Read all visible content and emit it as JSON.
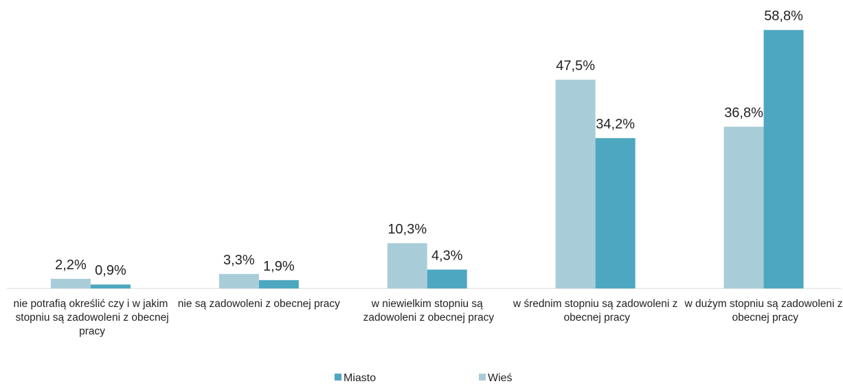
{
  "chart_data": {
    "type": "bar",
    "categories": [
      "nie potrafią określić czy i w jakim stopniu są zadowoleni z obecnej pracy",
      "nie są zadowoleni z obecnej pracy",
      "w niewielkim stopniu są zadowoleni z obecnej pracy",
      "w średnim stopniu są zadowoleni z obecnej pracy",
      "w dużym stopniu są zadowoleni z obecnej pracy"
    ],
    "series": [
      {
        "name": "Wieś",
        "color": "#a9cdd8",
        "values": [
          2.2,
          3.3,
          10.3,
          47.5,
          36.8
        ],
        "value_labels": [
          "2,2%",
          "3,3%",
          "10,3%",
          "47,5%",
          "36,8%"
        ]
      },
      {
        "name": "Miasto",
        "color": "#4ea7c0",
        "values": [
          0.9,
          1.9,
          4.3,
          34.2,
          58.8
        ],
        "value_labels": [
          "0,9%",
          "1,9%",
          "4,3%",
          "34,2%",
          "58,8%"
        ]
      }
    ],
    "legend_order": [
      "Miasto",
      "Wieś"
    ],
    "ylim": [
      0,
      60
    ],
    "grid": false
  }
}
